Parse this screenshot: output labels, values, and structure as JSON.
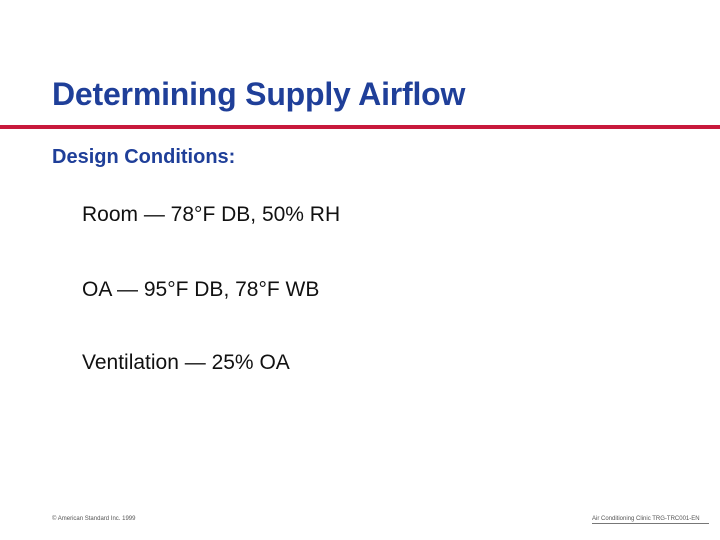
{
  "slide": {
    "title": "Determining Supply Airflow",
    "subtitle": "Design Conditions:",
    "conditions": [
      "Room — 78°F DB, 50% RH",
      "OA — 95°F DB, 78°F WB",
      "Ventilation — 25% OA"
    ]
  },
  "footer": {
    "left": "© American Standard Inc. 1999",
    "right": "Air Conditioning Clinic TRG-TRC001-EN"
  },
  "colors": {
    "title": "#1f3f99",
    "rule": "#c8193c",
    "body_text": "#111111"
  }
}
